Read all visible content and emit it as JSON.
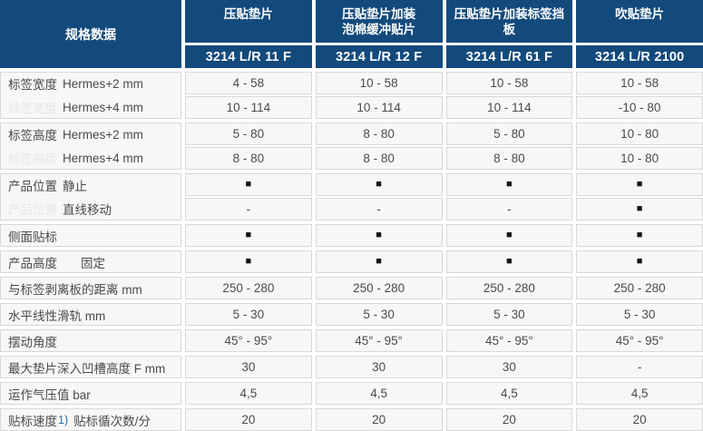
{
  "table": {
    "corner_label": "规格数据",
    "columns": [
      {
        "title": "压贴垫片",
        "model": "3214 L/R 11 F"
      },
      {
        "title": "压贴垫片加装\n泡棉缓冲贴片",
        "model": "3214 L/R 12 F"
      },
      {
        "title": "压贴垫片加装标签挡\n板",
        "model": "3214 L/R 61 F"
      },
      {
        "title": "吹贴垫片",
        "model": "3214 L/R 2100"
      }
    ],
    "groups": [
      {
        "rows": [
          {
            "label_main": "标签宽度",
            "label_sub": "Hermes+2 mm",
            "ghost": false,
            "values": [
              "4 - 58",
              "10 - 58",
              "10 - 58",
              "10 - 58"
            ]
          },
          {
            "label_main": "标签宽度",
            "label_sub": "Hermes+4 mm",
            "ghost": true,
            "values": [
              "10 - 114",
              "10 - 114",
              "10 - 114",
              "-10 - 80"
            ]
          }
        ]
      },
      {
        "rows": [
          {
            "label_main": "标签高度",
            "label_sub": "Hermes+2 mm",
            "ghost": false,
            "values": [
              "5 - 80",
              "8 - 80",
              "5 - 80",
              "10 - 80"
            ]
          },
          {
            "label_main": "标签高度",
            "label_sub": "Hermes+4 mm",
            "ghost": true,
            "values": [
              "8 - 80",
              "8 - 80",
              "8 - 80",
              "10 - 80"
            ]
          }
        ]
      },
      {
        "rows": [
          {
            "label_main": "产品位置",
            "label_sub": "静止",
            "ghost": false,
            "values": [
              "■",
              "■",
              "■",
              "■"
            ]
          },
          {
            "label_main": "产品位置",
            "label_sub": "直线移动",
            "ghost": true,
            "values": [
              "-",
              "-",
              "-",
              "■"
            ]
          }
        ]
      },
      {
        "rows": [
          {
            "label_main": "侧面贴标",
            "label_sub": "",
            "ghost": false,
            "values": [
              "■",
              "■",
              "■",
              "■"
            ]
          }
        ]
      },
      {
        "rows": [
          {
            "label_main": "产品高度",
            "label_sub": "固定",
            "wide_gap": true,
            "ghost": false,
            "values": [
              "■",
              "■",
              "■",
              "■"
            ]
          }
        ]
      },
      {
        "rows": [
          {
            "label_main": "与标签剥离板的距离 mm",
            "label_sub": "",
            "ghost": false,
            "values": [
              "250 - 280",
              "250 - 280",
              "250 - 280",
              "250 - 280"
            ]
          }
        ]
      },
      {
        "rows": [
          {
            "label_main": "水平线性滑轨 mm",
            "label_sub": "",
            "ghost": false,
            "values": [
              "5 - 30",
              "5 - 30",
              "5 - 30",
              "5 - 30"
            ]
          }
        ]
      },
      {
        "rows": [
          {
            "label_main": "摆动角度",
            "label_sub": "",
            "ghost": false,
            "values": [
              "45° - 95°",
              "45° - 95°",
              "45° - 95°",
              "45° - 95°"
            ]
          }
        ]
      },
      {
        "rows": [
          {
            "label_main": "最大垫片深入凹槽高度 F mm",
            "label_sub": "",
            "ghost": false,
            "values": [
              "30",
              "30",
              "30",
              "-"
            ]
          }
        ]
      },
      {
        "rows": [
          {
            "label_main": "运作气压值 bar",
            "label_sub": "",
            "ghost": false,
            "values": [
              "4,5",
              "4,5",
              "4,5",
              "4,5"
            ]
          }
        ]
      },
      {
        "rows": [
          {
            "label_main": "贴标速度",
            "label_sup": "1)",
            "label_sub": "贴标循次数/分",
            "ghost": false,
            "values": [
              "20",
              "20",
              "20",
              "20"
            ]
          }
        ]
      }
    ],
    "colors": {
      "header_blue": "#134a7c",
      "cell_bg": "#f7f7f6",
      "cell_border": "#d8d8d8",
      "text": "#4a4a4a",
      "ghost_text": "#eae6e6",
      "footnote_blue": "#2e6da4"
    }
  }
}
